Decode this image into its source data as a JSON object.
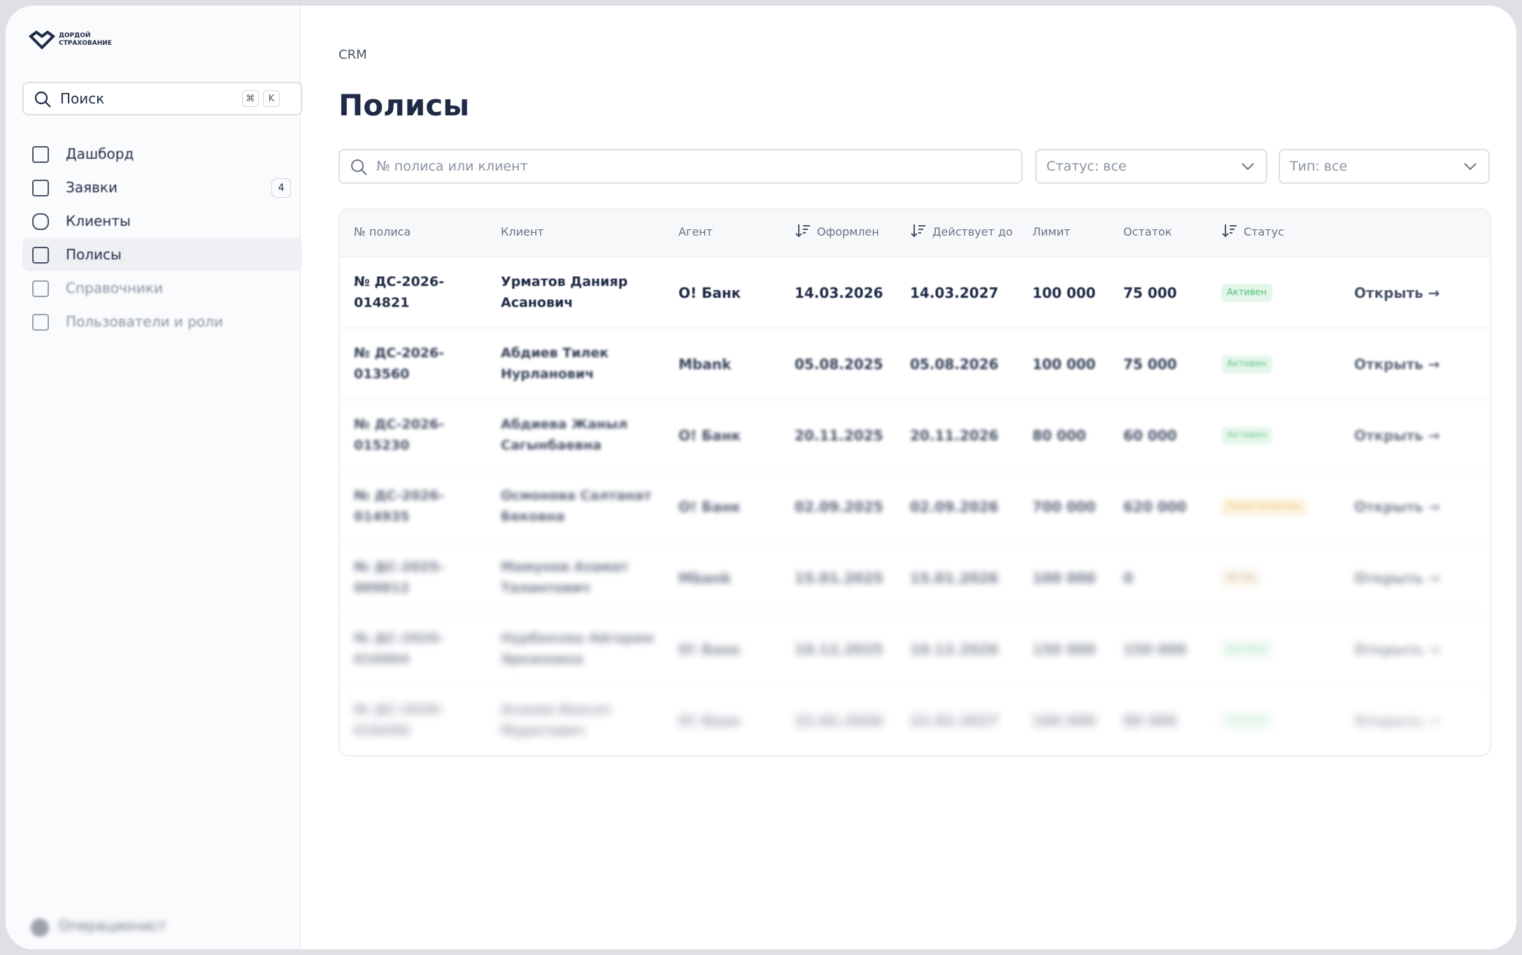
{
  "sidebar": {
    "logo": [
      "ДОРДОЙ",
      "СТРАХОВАНИЕ"
    ],
    "search": "Поиск",
    "shortcut": [
      "⌘",
      "K"
    ],
    "nav": [
      {
        "label": "Дашборд"
      },
      {
        "label": "Заявки",
        "badge": "4"
      },
      {
        "label": "Клиенты"
      },
      {
        "label": "Полисы",
        "active": true
      },
      {
        "label": "Справочники"
      },
      {
        "label": "Пользователи и роли"
      }
    ],
    "user": "Операционист"
  },
  "header": {
    "breadcrumb": "CRM",
    "title": "Полисы"
  },
  "filters": {
    "search_placeholder": "№ полиса или клиент",
    "status": "Статус: все",
    "type": "Тип: все"
  },
  "table": {
    "columns": [
      "№ полиса",
      "Клиент",
      "Агент",
      "Оформлен",
      "Действует до",
      "Лимит",
      "Остаток",
      "Статус"
    ],
    "action": "Открыть →",
    "rows": [
      [
        "№ ДС-2026-014821",
        "Урматов Данияр Асанович",
        "O! Банк",
        "14.03.2026",
        "14.03.2027",
        "100 000",
        "75 000",
        "Активен"
      ],
      [
        "№ ДС-2026-013560",
        "Абдиев Тилек Нурланович",
        "Mbank",
        "05.08.2025",
        "05.08.2026",
        "100 000",
        "75 000",
        "Активен"
      ],
      [
        "№ ДС-2026-015230",
        "Абдиева Жаныл Сагынбаевна",
        "O! Банк",
        "20.11.2025",
        "20.11.2026",
        "80 000",
        "60 000",
        "Активен"
      ],
      [
        "№ ДС-2026-014935",
        "Осмонова Салтанат Бековна",
        "O! Банк",
        "02.09.2025",
        "02.09.2026",
        "700 000",
        "620 000",
        "Приостановлен"
      ],
      [
        "№ ДС-2025-009812",
        "Мамунов Азамат Талантович",
        "Mbank",
        "15.01.2025",
        "15.01.2026",
        "100 000",
        "0",
        "Истёк"
      ],
      [
        "№ ДС-2026-016004",
        "Нурбекова Айгерим Эркиновна",
        "O! Банк",
        "10.12.2025",
        "10.12.2026",
        "150 000",
        "150 000",
        "Активен"
      ],
      [
        "№ ДС-2026-016450",
        "Асанов Бексат Муратович",
        "O! Банк",
        "22.02.2026",
        "22.02.2027",
        "100 000",
        "88 000",
        "Активен"
      ]
    ]
  }
}
